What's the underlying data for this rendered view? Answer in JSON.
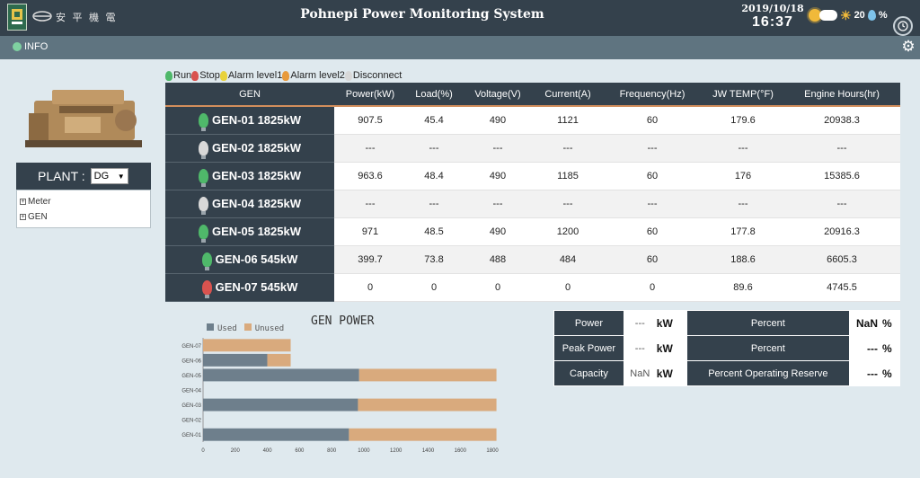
{
  "header": {
    "org_text": "安 平 機 電",
    "title": "Pohnepi Power Monitoring System",
    "date": "2019/10/18",
    "time": "16:37",
    "temperature": "20",
    "humidity_unit": "%"
  },
  "infobar": {
    "info_label": "INFO"
  },
  "plant": {
    "label": "PLANT :",
    "selected": "DG",
    "arrow": "▼"
  },
  "tree": {
    "items": [
      "Meter",
      "GEN"
    ]
  },
  "legend": [
    "Run",
    "Stop",
    "Alarm level1",
    "Alarm level2",
    "Disconnect"
  ],
  "colors": {
    "run": "#4fb86a",
    "stop": "#d9534f",
    "alarm1": "#e8d23c",
    "alarm2": "#e89a3c",
    "disconnect": "#d8d8d8",
    "used": "#6e7f8c",
    "unused": "#d9aa7d"
  },
  "table": {
    "headers": [
      "GEN",
      "Power(kW)",
      "Load(%)",
      "Voltage(V)",
      "Current(A)",
      "Frequency(Hz)",
      "JW TEMP(°F)",
      "Engine Hours(hr)"
    ],
    "rows": [
      {
        "name": "GEN-01 1825kW",
        "status": "run",
        "values": [
          "907.5",
          "45.4",
          "490",
          "1121",
          "60",
          "179.6",
          "20938.3"
        ]
      },
      {
        "name": "GEN-02 1825kW",
        "status": "disconnect",
        "values": [
          "---",
          "---",
          "---",
          "---",
          "---",
          "---",
          "---"
        ]
      },
      {
        "name": "GEN-03 1825kW",
        "status": "run",
        "values": [
          "963.6",
          "48.4",
          "490",
          "1185",
          "60",
          "176",
          "15385.6"
        ]
      },
      {
        "name": "GEN-04 1825kW",
        "status": "disconnect",
        "values": [
          "---",
          "---",
          "---",
          "---",
          "---",
          "---",
          "---"
        ]
      },
      {
        "name": "GEN-05 1825kW",
        "status": "run",
        "values": [
          "971",
          "48.5",
          "490",
          "1200",
          "60",
          "177.8",
          "20916.3"
        ]
      },
      {
        "name": "GEN-06 545kW",
        "status": "run",
        "values": [
          "399.7",
          "73.8",
          "488",
          "484",
          "60",
          "188.6",
          "6605.3"
        ]
      },
      {
        "name": "GEN-07 545kW",
        "status": "stop",
        "values": [
          "0",
          "0",
          "0",
          "0",
          "0",
          "89.6",
          "4745.5"
        ]
      }
    ]
  },
  "chart_data": {
    "type": "bar",
    "orientation": "horizontal",
    "stacked": true,
    "title": "GEN POWER",
    "categories": [
      "GEN-01",
      "GEN-02",
      "GEN-03",
      "GEN-04",
      "GEN-05",
      "GEN-06",
      "GEN-07"
    ],
    "series": [
      {
        "name": "Used",
        "values": [
          907.5,
          0,
          963.6,
          0,
          971,
          399.7,
          0
        ]
      },
      {
        "name": "Unused",
        "values": [
          917.5,
          0,
          861.4,
          0,
          854,
          145.3,
          545
        ]
      }
    ],
    "xticks": [
      0,
      200,
      400,
      600,
      800,
      1000,
      1200,
      1400,
      1600,
      1800
    ],
    "xlim": [
      0,
      1900
    ],
    "legend_position": "top-left"
  },
  "summary": {
    "rows": [
      {
        "label": "Power",
        "value": "---",
        "unit": "kW",
        "plabel": "Percent",
        "pvalue": "NaN",
        "punit": "%"
      },
      {
        "label": "Peak Power",
        "value": "---",
        "unit": "kW",
        "plabel": "Percent",
        "pvalue": "---",
        "punit": "%"
      },
      {
        "label": "Capacity",
        "value": "NaN",
        "unit": "kW",
        "plabel": "Percent Operating Reserve",
        "pvalue": "---",
        "punit": "%"
      }
    ]
  }
}
